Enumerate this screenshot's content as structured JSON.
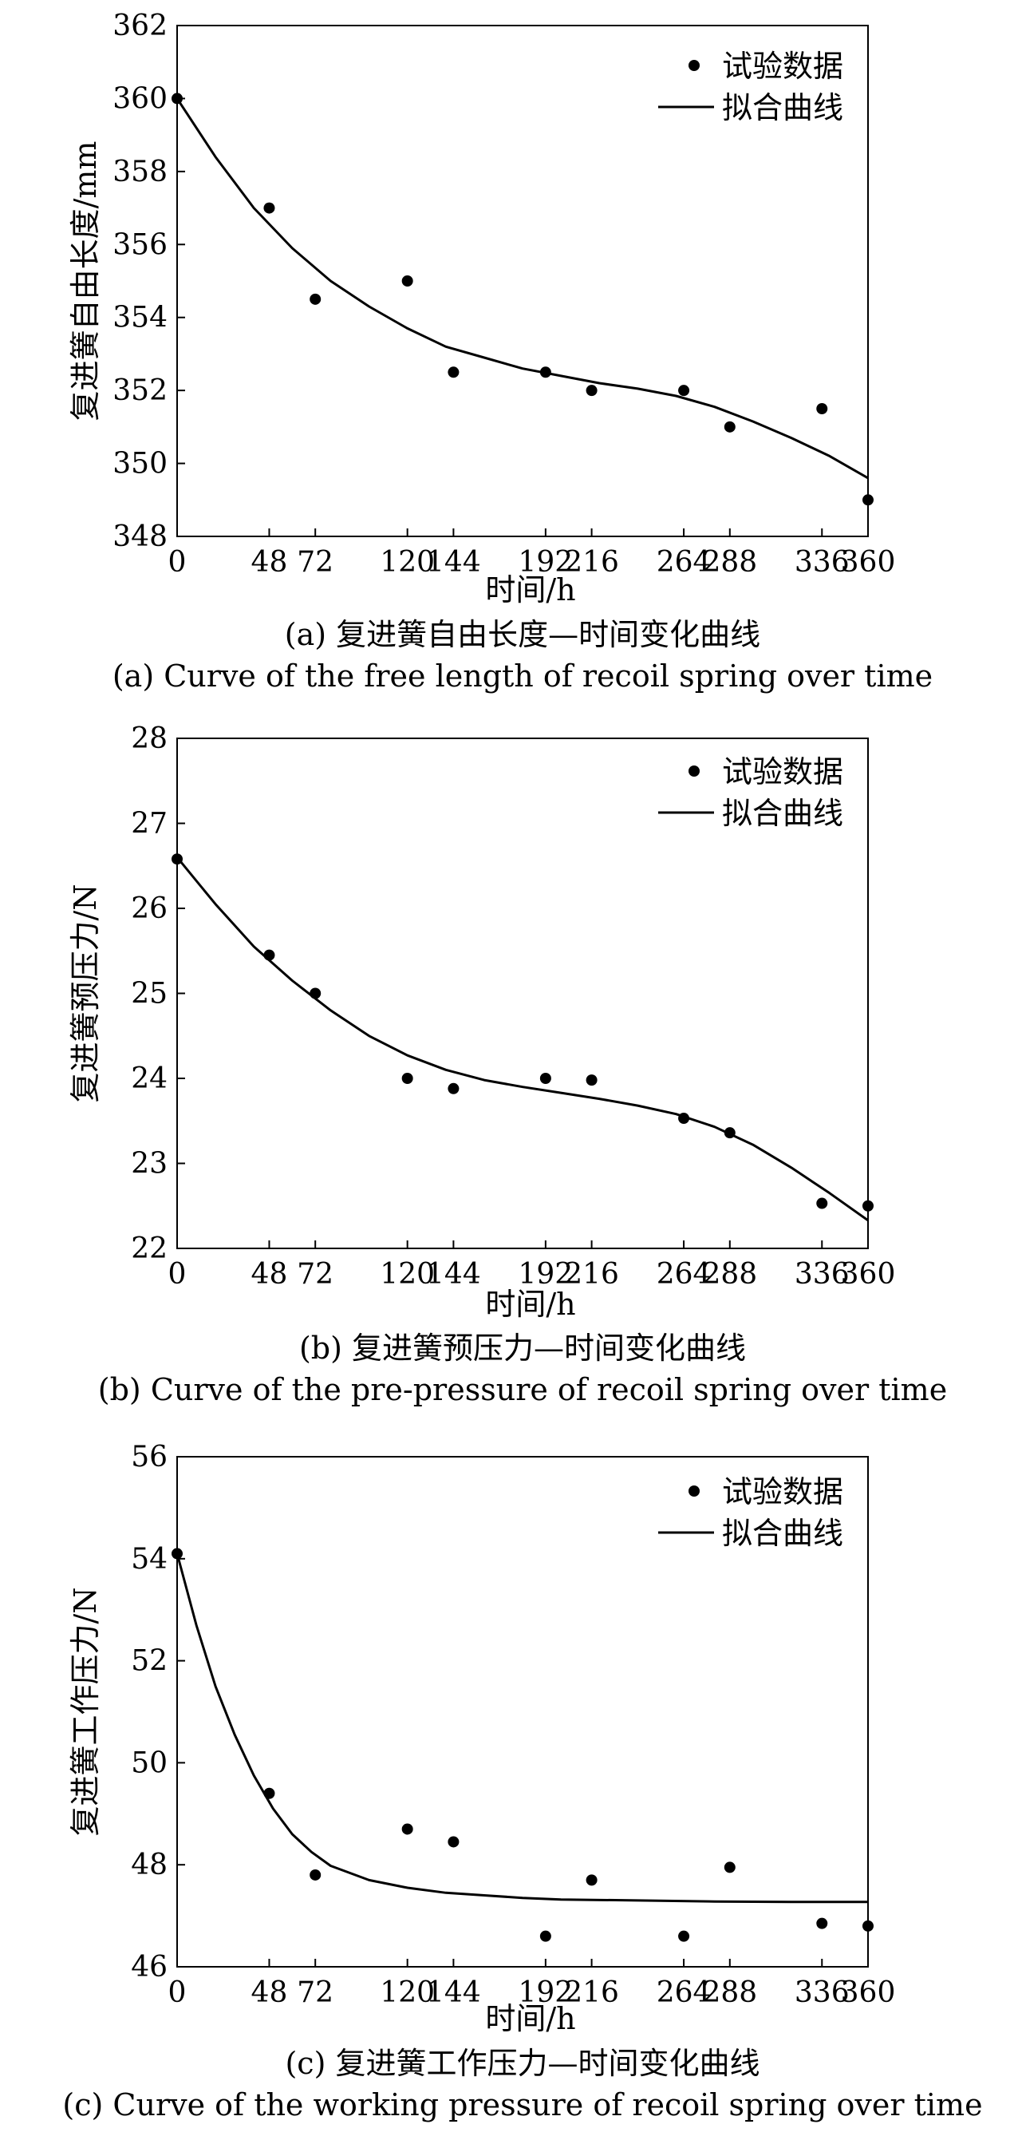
{
  "chart_data": [
    {
      "type": "scatter",
      "ylabel": "复进簧自由长度/mm",
      "xlabel": "时间/h",
      "caption_cn": "(a) 复进簧自由长度—时间变化曲线",
      "caption_en": "(a) Curve of the free length of recoil spring over time",
      "xticks": [
        0,
        48,
        72,
        120,
        144,
        192,
        216,
        264,
        288,
        336,
        360
      ],
      "yticks": [
        348,
        350,
        352,
        354,
        356,
        358,
        360,
        362
      ],
      "xlim": [
        0,
        360
      ],
      "ylim": [
        348,
        362
      ],
      "legend_position": "top-right",
      "series": [
        {
          "name": "试验数据",
          "kind": "points",
          "x": [
            0,
            48,
            72,
            120,
            144,
            192,
            216,
            264,
            288,
            336,
            360
          ],
          "y": [
            360,
            357,
            354.5,
            355,
            352.5,
            352.5,
            352,
            352,
            351,
            351.5,
            349
          ]
        },
        {
          "name": "拟合曲线",
          "kind": "line",
          "x": [
            0,
            20,
            40,
            60,
            80,
            100,
            120,
            140,
            160,
            180,
            200,
            220,
            240,
            260,
            280,
            300,
            320,
            340,
            360
          ],
          "y": [
            360,
            358.4,
            357,
            355.9,
            355,
            354.3,
            353.7,
            353.2,
            352.9,
            352.6,
            352.4,
            352.2,
            352.05,
            351.85,
            351.55,
            351.15,
            350.7,
            350.2,
            349.6
          ]
        }
      ]
    },
    {
      "type": "scatter",
      "ylabel": "复进簧预压力/N",
      "xlabel": "时间/h",
      "caption_cn": "(b) 复进簧预压力—时间变化曲线",
      "caption_en": "(b) Curve of the pre-pressure of recoil spring over time",
      "xticks": [
        0,
        48,
        72,
        120,
        144,
        192,
        216,
        264,
        288,
        336,
        360
      ],
      "yticks": [
        22,
        23,
        24,
        25,
        26,
        27,
        28
      ],
      "xlim": [
        0,
        360
      ],
      "ylim": [
        22,
        28
      ],
      "legend_position": "top-right",
      "series": [
        {
          "name": "试验数据",
          "kind": "points",
          "x": [
            0,
            48,
            72,
            120,
            144,
            192,
            216,
            264,
            288,
            336,
            360
          ],
          "y": [
            26.58,
            25.45,
            25.0,
            24.0,
            23.88,
            24.0,
            23.98,
            23.53,
            23.36,
            22.53,
            22.5
          ]
        },
        {
          "name": "拟合曲线",
          "kind": "line",
          "x": [
            0,
            20,
            40,
            60,
            80,
            100,
            120,
            140,
            160,
            180,
            200,
            220,
            240,
            260,
            280,
            300,
            320,
            340,
            360
          ],
          "y": [
            26.6,
            26.05,
            25.55,
            25.15,
            24.8,
            24.5,
            24.27,
            24.1,
            23.98,
            23.9,
            23.83,
            23.76,
            23.68,
            23.58,
            23.43,
            23.22,
            22.95,
            22.65,
            22.33
          ]
        }
      ]
    },
    {
      "type": "scatter",
      "ylabel": "复进簧工作压力/N",
      "xlabel": "时间/h",
      "caption_cn": "(c) 复进簧工作压力—时间变化曲线",
      "caption_en": "(c) Curve of the working pressure of recoil spring over time",
      "xticks": [
        0,
        48,
        72,
        120,
        144,
        192,
        216,
        264,
        288,
        336,
        360
      ],
      "yticks": [
        46,
        48,
        50,
        52,
        54,
        56
      ],
      "xlim": [
        0,
        360
      ],
      "ylim": [
        46,
        56
      ],
      "legend_position": "top-right",
      "series": [
        {
          "name": "试验数据",
          "kind": "points",
          "x": [
            0,
            48,
            72,
            120,
            144,
            192,
            216,
            264,
            288,
            336,
            360
          ],
          "y": [
            54.1,
            49.4,
            47.8,
            48.7,
            48.45,
            46.6,
            47.7,
            46.6,
            47.95,
            46.85,
            46.8
          ]
        },
        {
          "name": "拟合曲线",
          "kind": "line",
          "x": [
            0,
            10,
            20,
            30,
            40,
            50,
            60,
            70,
            80,
            100,
            120,
            140,
            160,
            180,
            200,
            240,
            280,
            320,
            360
          ],
          "y": [
            54.1,
            52.7,
            51.5,
            50.55,
            49.75,
            49.1,
            48.6,
            48.25,
            47.98,
            47.7,
            47.55,
            47.45,
            47.4,
            47.35,
            47.32,
            47.3,
            47.28,
            47.27,
            47.27
          ]
        }
      ]
    }
  ]
}
